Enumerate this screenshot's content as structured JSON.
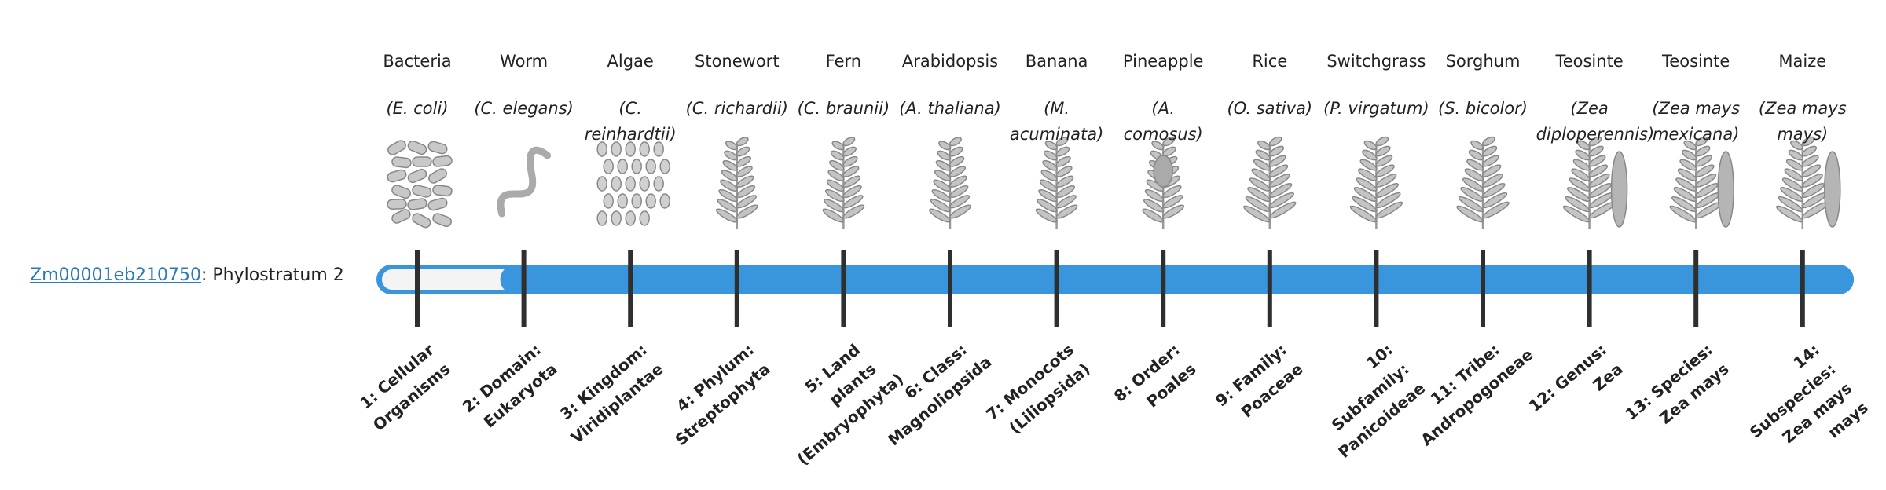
{
  "gene": {
    "id": "Zm00001eb210750",
    "phylostratum": ": Phylostratum 2"
  },
  "strata": [
    {
      "name": "Bacteria",
      "species": "(E. coli)",
      "level": "1: Cellular Organisms"
    },
    {
      "name": "Worm",
      "species": "(C. elegans)",
      "level": "2: Domain: Eukaryota"
    },
    {
      "name": "Algae",
      "species": "(C. reinhardtii)",
      "level": "3: Kingdom: Viridiplantae"
    },
    {
      "name": "Stonewort",
      "species": "(C. richardii)",
      "level": "4: Phylum: Streptophyta"
    },
    {
      "name": "Fern",
      "species": "(C. braunii)",
      "level": "5: Land plants (Embryophyta)"
    },
    {
      "name": "Arabidopsis",
      "species": "(A. thaliana)",
      "level": "6: Class: Magnoliopsida"
    },
    {
      "name": "Banana",
      "species": "(M. acuminata)",
      "level": "7: Monocots (Liliopsida)"
    },
    {
      "name": "Pineapple",
      "species": "(A. comosus)",
      "level": "8: Order: Poales"
    },
    {
      "name": "Rice",
      "species": "(O. sativa)",
      "level": "9: Family: Poaceae"
    },
    {
      "name": "Switchgrass",
      "species": "(P. virgatum)",
      "level": "10: Subfamily: Panicoideae"
    },
    {
      "name": "Sorghum",
      "species": "(S. bicolor)",
      "level": "11: Tribe: Andropogoneae"
    },
    {
      "name": "Teosinte",
      "species": "(Zea diploperennis)",
      "level": "12: Genus: Zea"
    },
    {
      "name": "Teosinte",
      "species": "(Zea mays mexicana)",
      "level": "13: Species: Zea mays"
    },
    {
      "name": "Maize",
      "species": "(Zea mays mays)",
      "level": "14: Subspecies: Zea mays mays"
    }
  ]
}
